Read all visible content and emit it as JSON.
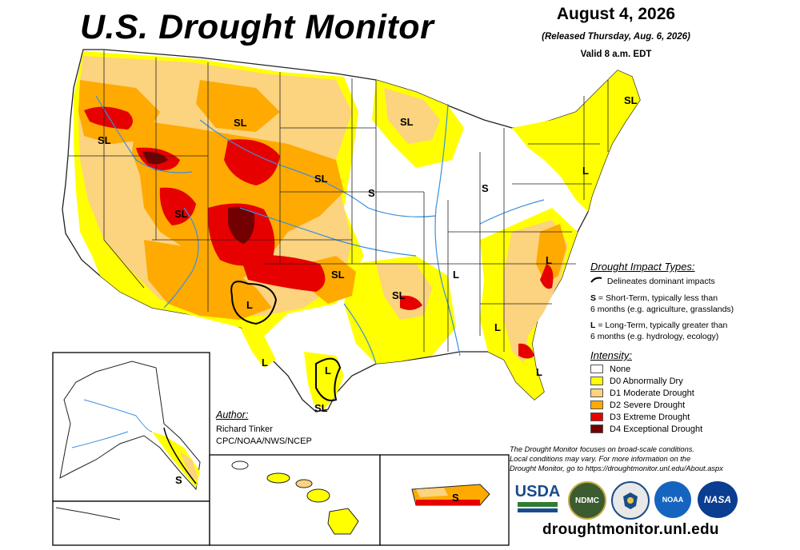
{
  "header": {
    "title": "U.S. Drought Monitor",
    "date": "August 4, 2026",
    "released": "(Released Thursday, Aug. 6, 2026)",
    "valid": "Valid 8 a.m. EDT"
  },
  "map_labels": {
    "sl": "SL",
    "s": "S",
    "l": "L"
  },
  "impact_types": {
    "title": "Drought Impact Types:",
    "delineates": "Delineates dominant impacts",
    "short_term_key": "S",
    "short_term_text": " = Short-Term, typically less than",
    "short_term_text2": "6 months (e.g. agriculture, grasslands)",
    "long_term_key": "L",
    "long_term_text": " = Long-Term, typically greater than",
    "long_term_text2": "6 months (e.g. hydrology, ecology)"
  },
  "intensity": {
    "title": "Intensity:",
    "levels": [
      {
        "label": "None",
        "color": "#ffffff"
      },
      {
        "label": "D0 Abnormally Dry",
        "color": "#ffff00"
      },
      {
        "label": "D1 Moderate Drought",
        "color": "#fcd37f"
      },
      {
        "label": "D2 Severe Drought",
        "color": "#ffaa00"
      },
      {
        "label": "D3 Extreme Drought",
        "color": "#e60000"
      },
      {
        "label": "D4 Exceptional Drought",
        "color": "#730000"
      }
    ]
  },
  "author": {
    "title": "Author:",
    "name": "Richard Tinker",
    "org": "CPC/NOAA/NWS/NCEP"
  },
  "disclaimer": {
    "line1": "The Drought Monitor focuses on broad-scale conditions.",
    "line2": "Local conditions may vary. For more information on the",
    "line3": "Drought Monitor, go to https://droughtmonitor.unl.edu/About.aspx"
  },
  "logos": {
    "usda": "USDA",
    "ndmc": "NDMC",
    "noaa": "NOAA",
    "nasa": "NASA"
  },
  "footer": {
    "site": "droughtmonitor.unl.edu"
  },
  "colors": {
    "river": "#3b8fe0",
    "border": "#222222"
  }
}
